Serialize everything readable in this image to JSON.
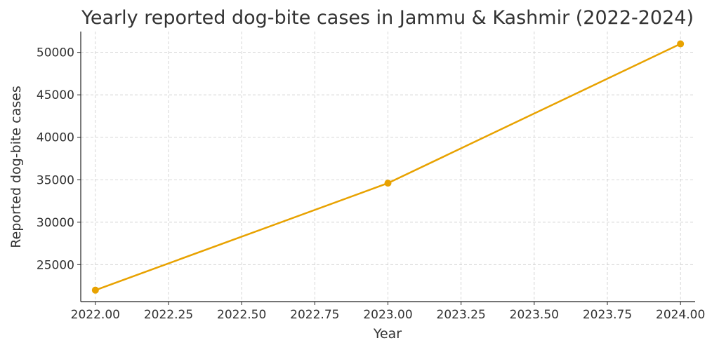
{
  "chart_data": {
    "type": "line",
    "title": "Yearly reported dog-bite cases in Jammu & Kashmir (2022-2024)",
    "xlabel": "Year",
    "ylabel": "Reported dog-bite cases",
    "x": [
      2022,
      2023,
      2024
    ],
    "values": [
      22000,
      34600,
      51000
    ],
    "xlim": [
      2021.95,
      2024.05
    ],
    "ylim": [
      20650,
      52450
    ],
    "xticks": [
      "2022.00",
      "2022.25",
      "2022.50",
      "2022.75",
      "2023.00",
      "2023.25",
      "2023.50",
      "2023.75",
      "2024.00"
    ],
    "yticks": [
      "25000",
      "30000",
      "35000",
      "40000",
      "45000",
      "50000"
    ],
    "grid": true,
    "color": "#E8A200"
  }
}
